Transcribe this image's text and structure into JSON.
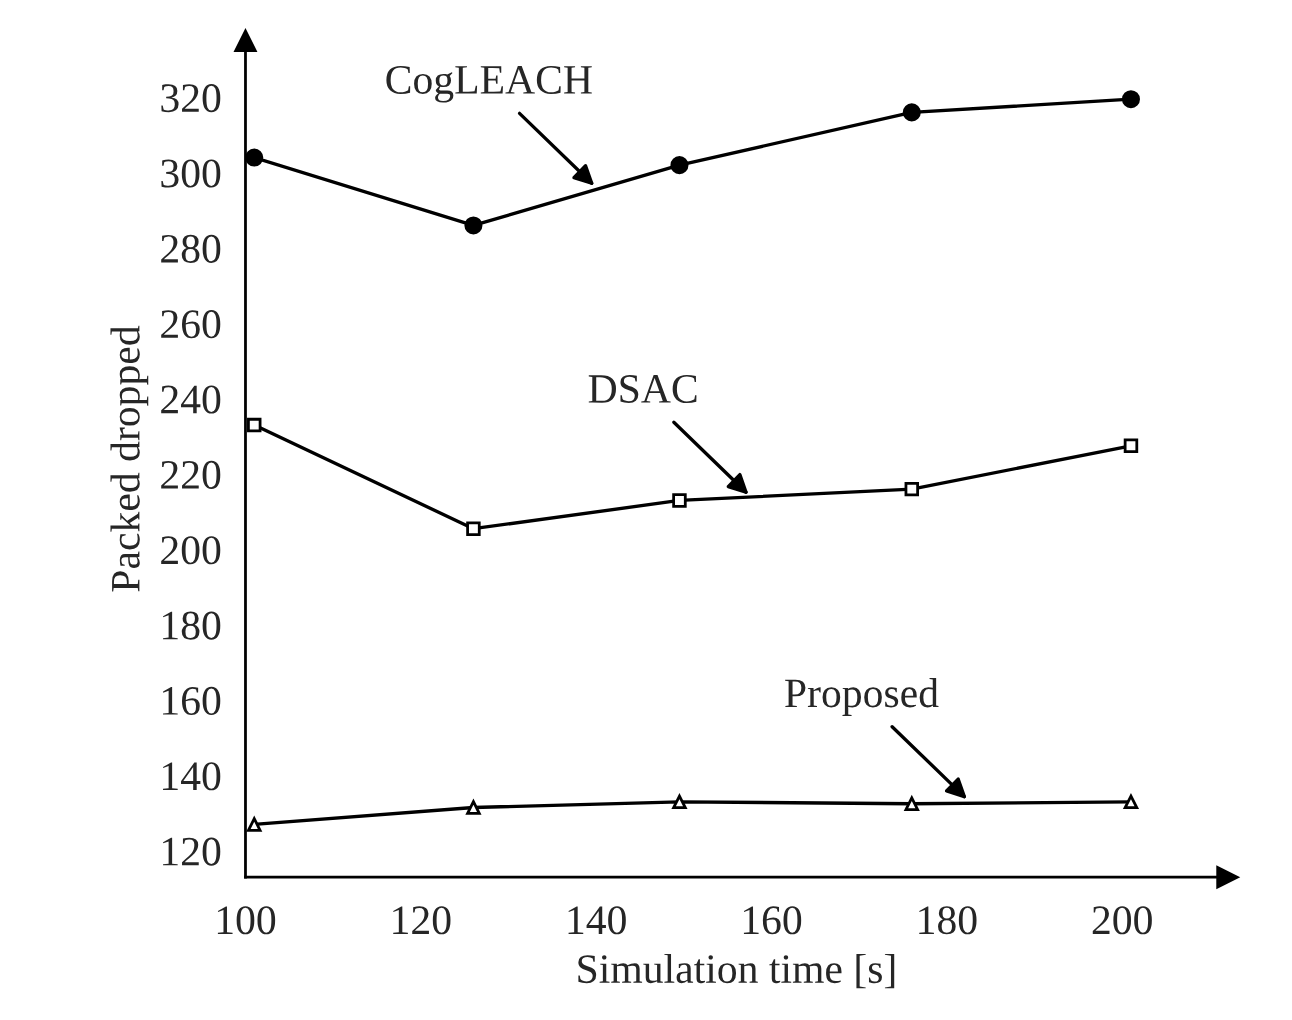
{
  "chart_data": {
    "type": "line",
    "xlabel": "Simulation time [s]",
    "ylabel": "Packed dropped",
    "x": [
      101,
      126,
      149.5,
      176,
      201
    ],
    "series": [
      {
        "color": "#000000",
        "marker": "circle",
        "values": [
          304,
          286,
          302,
          316,
          319.5
        ]
      },
      {
        "color": "#000000",
        "marker": "square",
        "values": [
          233,
          205.5,
          213,
          216,
          227.5
        ]
      },
      {
        "color": "#000000",
        "marker": "triangle",
        "values": [
          127,
          131.5,
          133,
          132.5,
          133
        ]
      }
    ],
    "annotations": [
      {
        "text": "CogLEACH",
        "x": 139.8,
        "y": 296.5
      },
      {
        "text": "DSAC",
        "x": 157.4,
        "y": 214.5
      },
      {
        "text": "Proposed",
        "x": 182.3,
        "y": 133.7
      }
    ],
    "xlim": [
      100,
      212
    ],
    "ylim": [
      113,
      335
    ],
    "xticks": [
      100,
      120,
      140,
      160,
      180,
      200
    ],
    "yticks": [
      120,
      140,
      160,
      180,
      200,
      220,
      240,
      260,
      280,
      300,
      320
    ],
    "grid": false,
    "legend": false,
    "line_style": "solid"
  }
}
